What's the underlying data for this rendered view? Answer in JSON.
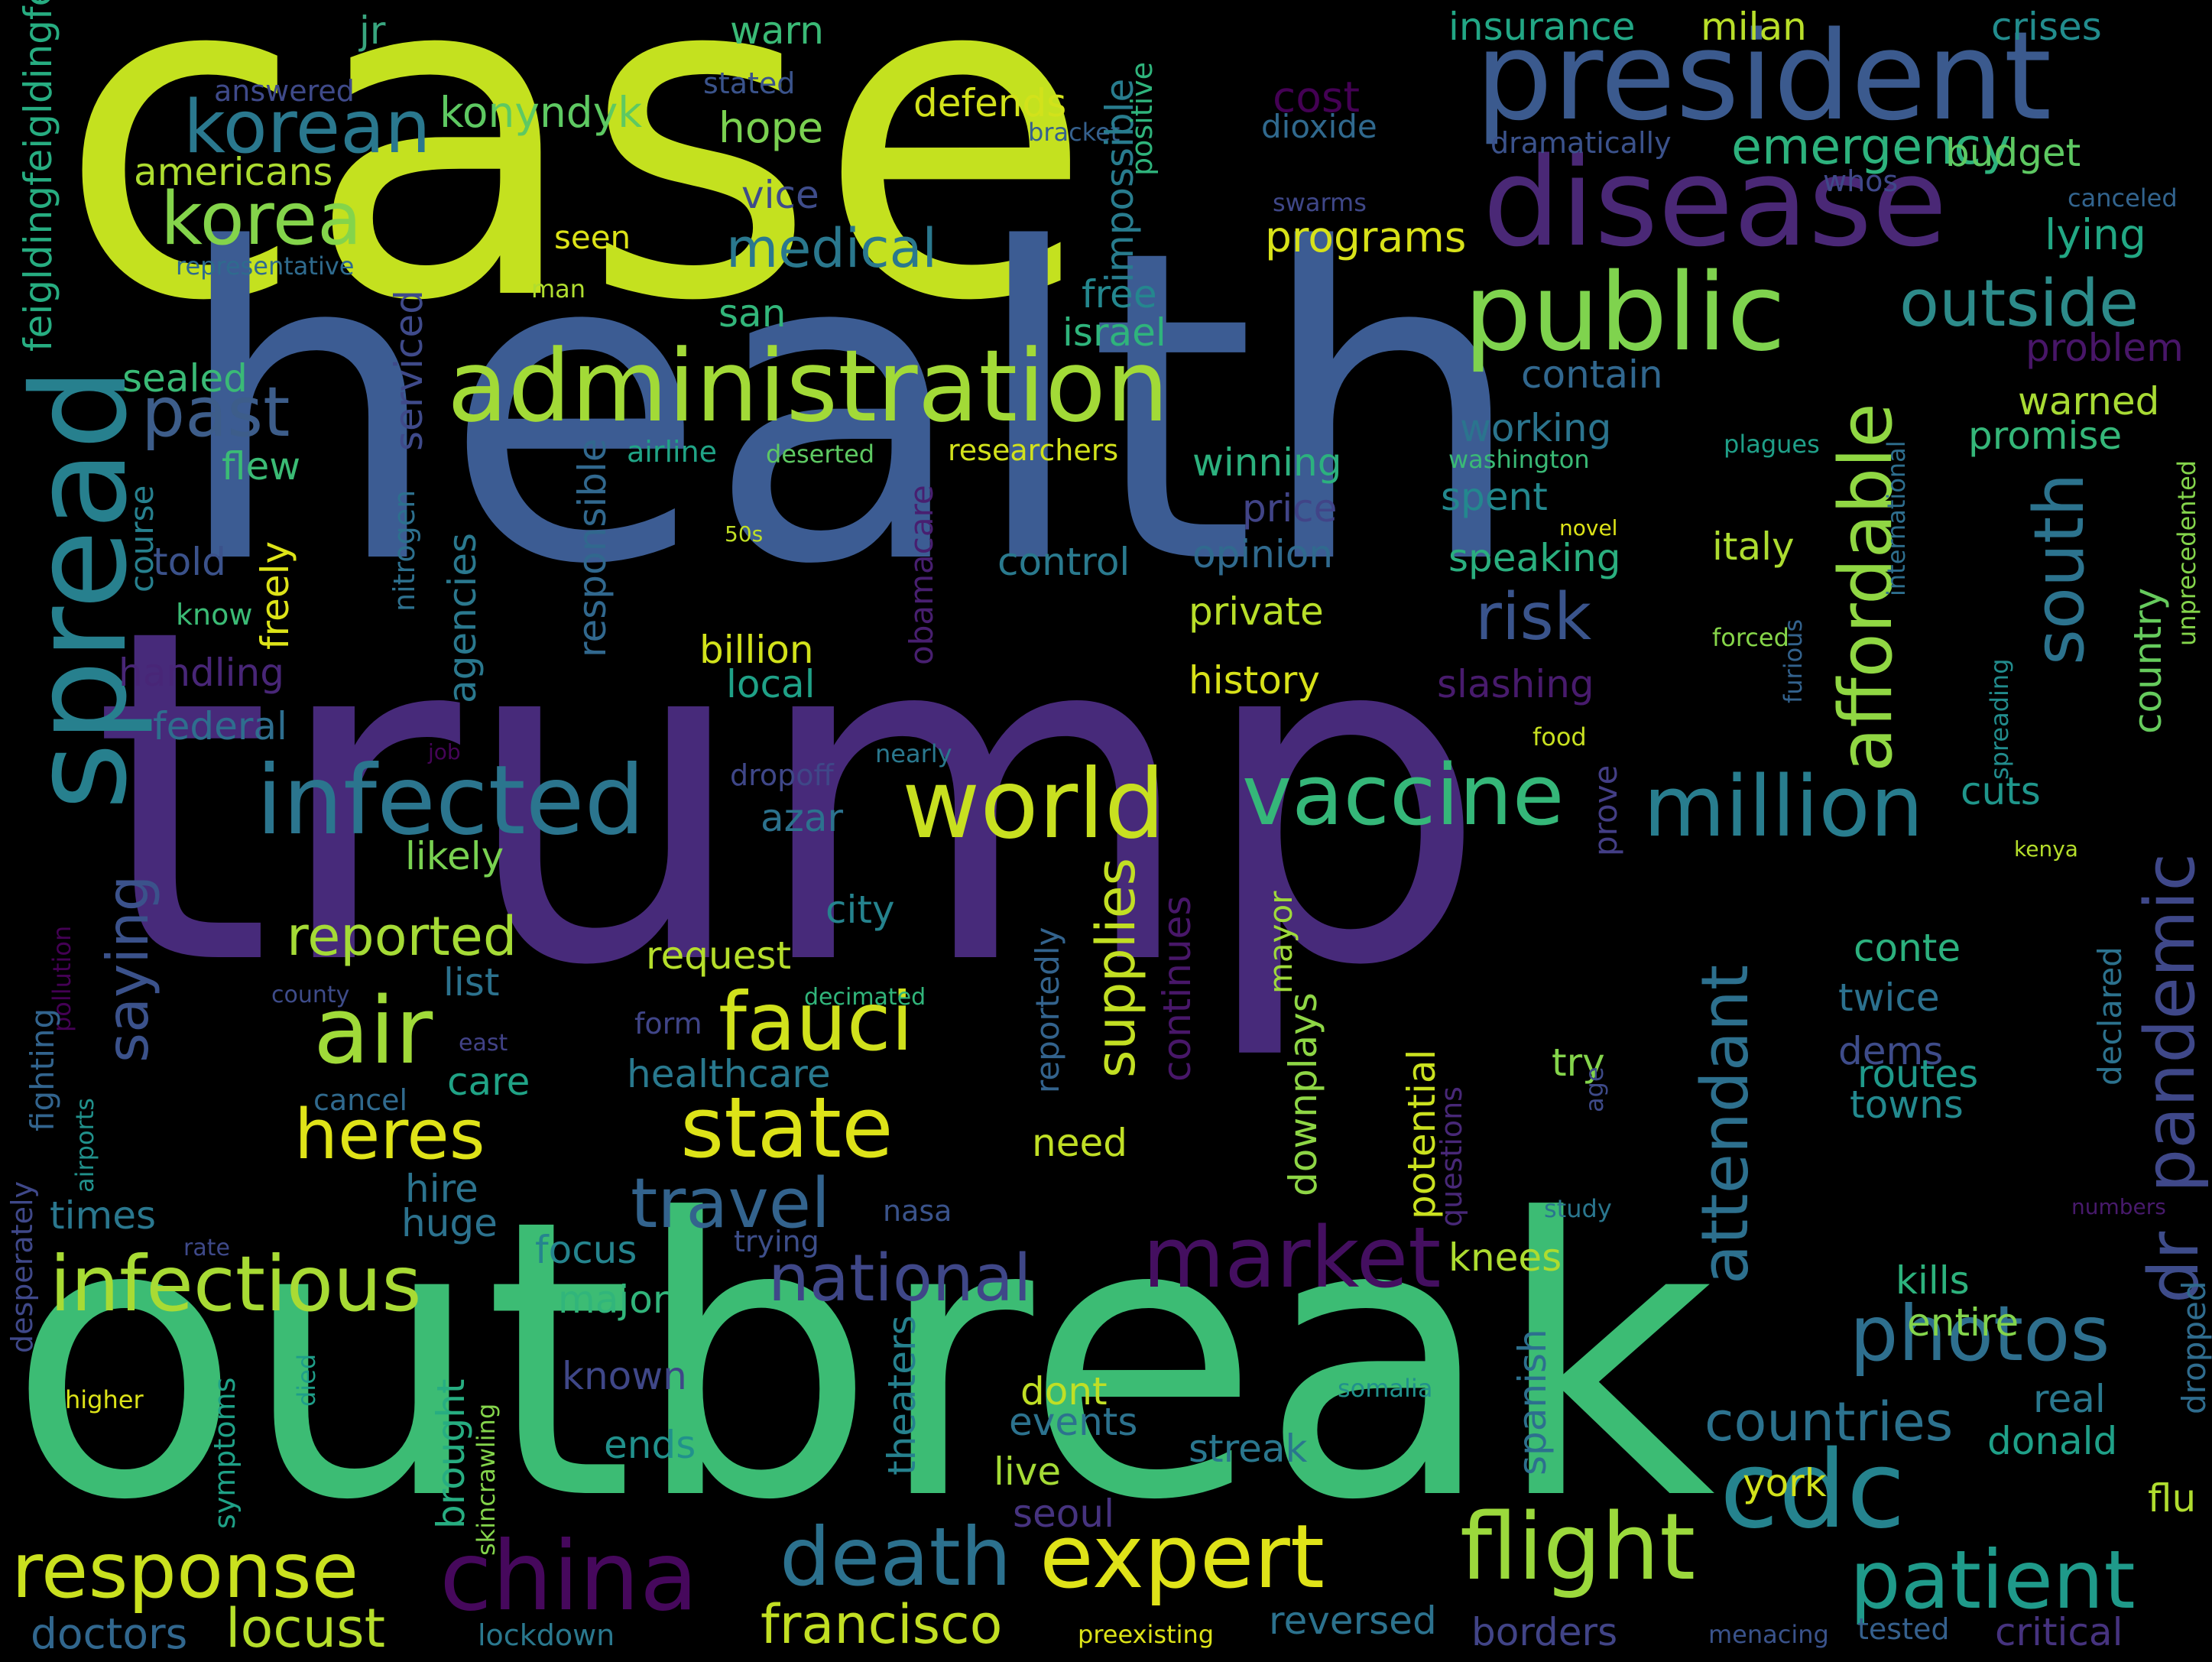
{
  "words": [
    {
      "text": "case",
      "color": "#c4e11f"
    },
    {
      "text": "health",
      "color": "#3c5c93"
    },
    {
      "text": "trump",
      "color": "#472a7a"
    },
    {
      "text": "outbreak",
      "color": "#3cbc74"
    },
    {
      "text": "president",
      "color": "#3b5a8e"
    },
    {
      "text": "disease",
      "color": "#4a2876"
    },
    {
      "text": "public",
      "color": "#7fd34e"
    },
    {
      "text": "administration",
      "color": "#a2da37"
    },
    {
      "text": "korean",
      "color": "#2a788e"
    },
    {
      "text": "korea",
      "color": "#84d44b"
    },
    {
      "text": "spread",
      "color": "#27808e"
    },
    {
      "text": "past",
      "color": "#3d5d8a"
    },
    {
      "text": "infected",
      "color": "#2b758e"
    },
    {
      "text": "world",
      "color": "#c8e020"
    },
    {
      "text": "vaccine",
      "color": "#35b779"
    },
    {
      "text": "million",
      "color": "#287d8e"
    },
    {
      "text": "affordable",
      "color": "#90d743"
    },
    {
      "text": "south",
      "color": "#2c738e"
    },
    {
      "text": "outside",
      "color": "#2d8b8a"
    },
    {
      "text": "risk",
      "color": "#3a548c"
    },
    {
      "text": "air",
      "color": "#a0da39"
    },
    {
      "text": "fauci",
      "color": "#d0e11c"
    },
    {
      "text": "state",
      "color": "#dde318"
    },
    {
      "text": "heres",
      "color": "#dfe318"
    },
    {
      "text": "travel",
      "color": "#33638d"
    },
    {
      "text": "national",
      "color": "#3f4788"
    },
    {
      "text": "market",
      "color": "#440f60"
    },
    {
      "text": "pandemic",
      "color": "#3f4889"
    },
    {
      "text": "dr",
      "color": "#3e4c8a"
    },
    {
      "text": "photos",
      "color": "#2e6f8e"
    },
    {
      "text": "cdc",
      "color": "#25838e"
    },
    {
      "text": "patient",
      "color": "#1f9a8a"
    },
    {
      "text": "flight",
      "color": "#9bd93c"
    },
    {
      "text": "expert",
      "color": "#dfe318"
    },
    {
      "text": "death",
      "color": "#2c718e"
    },
    {
      "text": "china",
      "color": "#46085c"
    },
    {
      "text": "response",
      "color": "#cae11f"
    },
    {
      "text": "infectious",
      "color": "#a8db34"
    },
    {
      "text": "attendant",
      "color": "#2d708e"
    },
    {
      "text": "medical",
      "color": "#2a788e"
    },
    {
      "text": "emergency",
      "color": "#2db27d"
    },
    {
      "text": "reported",
      "color": "#a5db36"
    },
    {
      "text": "saying",
      "color": "#3b528b"
    },
    {
      "text": "supplies",
      "color": "#c2df23"
    },
    {
      "text": "countries",
      "color": "#2c728e"
    },
    {
      "text": "locust",
      "color": "#b5de2b"
    },
    {
      "text": "francisco",
      "color": "#c2df23"
    },
    {
      "text": "doctors",
      "color": "#31678e"
    },
    {
      "text": "insurance",
      "color": "#22a785"
    },
    {
      "text": "milan",
      "color": "#b8de29"
    },
    {
      "text": "crises",
      "color": "#228c8d"
    },
    {
      "text": "warn",
      "color": "#3aba76"
    },
    {
      "text": "jr",
      "color": "#39a57f"
    },
    {
      "text": "answered",
      "color": "#3f4a8a"
    },
    {
      "text": "stated",
      "color": "#3a538b"
    },
    {
      "text": "defends",
      "color": "#d2e21b"
    },
    {
      "text": "cost",
      "color": "#440154"
    },
    {
      "text": "dioxide",
      "color": "#30698e"
    },
    {
      "text": "konyndyk",
      "color": "#5ec962"
    },
    {
      "text": "hope",
      "color": "#7ad151"
    },
    {
      "text": "bracket",
      "color": "#35608d"
    },
    {
      "text": "impossible",
      "color": "#287c8e"
    },
    {
      "text": "positive",
      "color": "#2fb47c"
    },
    {
      "text": "americans",
      "color": "#addc30"
    },
    {
      "text": "vice",
      "color": "#3e4c8a"
    },
    {
      "text": "dramatically",
      "color": "#3b528b"
    },
    {
      "text": "whos",
      "color": "#3f4889"
    },
    {
      "text": "budget",
      "color": "#5ec962"
    },
    {
      "text": "canceled",
      "color": "#32648e"
    },
    {
      "text": "swarms",
      "color": "#3f4788"
    },
    {
      "text": "lying",
      "color": "#22a884"
    },
    {
      "text": "feigldingfeigldingfeigl",
      "color": "#27ad81"
    },
    {
      "text": "representative",
      "color": "#2f6b8e"
    },
    {
      "text": "seen",
      "color": "#dde318"
    },
    {
      "text": "man",
      "color": "#b0dd2f"
    },
    {
      "text": "programs",
      "color": "#d8e219"
    },
    {
      "text": "san",
      "color": "#32b67a"
    },
    {
      "text": "free",
      "color": "#24878e"
    },
    {
      "text": "israel",
      "color": "#2fb47c"
    },
    {
      "text": "serviced",
      "color": "#3f4a8a"
    },
    {
      "text": "contain",
      "color": "#31678e"
    },
    {
      "text": "problem",
      "color": "#481668"
    },
    {
      "text": "sealed",
      "color": "#3aba76"
    },
    {
      "text": "flew",
      "color": "#3bbb75"
    },
    {
      "text": "working",
      "color": "#2b748e"
    },
    {
      "text": "warned",
      "color": "#a8db34"
    },
    {
      "text": "promise",
      "color": "#35b779"
    },
    {
      "text": "airline",
      "color": "#20a486"
    },
    {
      "text": "deserted",
      "color": "#5ec962"
    },
    {
      "text": "obamacare",
      "color": "#481f70"
    },
    {
      "text": "researchers",
      "color": "#d2e21b"
    },
    {
      "text": "winning",
      "color": "#2cb17e"
    },
    {
      "text": "washington",
      "color": "#3aba76"
    },
    {
      "text": "plagues",
      "color": "#1f9f88"
    },
    {
      "text": "international",
      "color": "#2e6e8e"
    },
    {
      "text": "unprecedented",
      "color": "#84d44b"
    },
    {
      "text": "course",
      "color": "#27808e"
    },
    {
      "text": "told",
      "color": "#3b528b"
    },
    {
      "text": "freely",
      "color": "#dde318"
    },
    {
      "text": "nitrogen",
      "color": "#2d708e"
    },
    {
      "text": "agencies",
      "color": "#2a788e"
    },
    {
      "text": "responsible",
      "color": "#31688e"
    },
    {
      "text": "price",
      "color": "#414487"
    },
    {
      "text": "spent",
      "color": "#23888e"
    },
    {
      "text": "novel",
      "color": "#dde318"
    },
    {
      "text": "50s",
      "color": "#c0df25"
    },
    {
      "text": "control",
      "color": "#2a7a8e"
    },
    {
      "text": "opinion",
      "color": "#306a8e"
    },
    {
      "text": "speaking",
      "color": "#2aaf7f"
    },
    {
      "text": "italy",
      "color": "#addc30"
    },
    {
      "text": "country",
      "color": "#66cb5d"
    },
    {
      "text": "know",
      "color": "#3bbb75"
    },
    {
      "text": "private",
      "color": "#b8de29"
    },
    {
      "text": "billion",
      "color": "#d2e21b"
    },
    {
      "text": "local",
      "color": "#1fa187"
    },
    {
      "text": "history",
      "color": "#d8e219"
    },
    {
      "text": "slashing",
      "color": "#481b6d"
    },
    {
      "text": "forced",
      "color": "#86d549"
    },
    {
      "text": "furious",
      "color": "#33628d"
    },
    {
      "text": "spreading",
      "color": "#228c8d"
    },
    {
      "text": "handling",
      "color": "#482677"
    },
    {
      "text": "federal",
      "color": "#2e6e8e"
    },
    {
      "text": "job",
      "color": "#450457"
    },
    {
      "text": "nearly",
      "color": "#2a788e"
    },
    {
      "text": "food",
      "color": "#c8e020"
    },
    {
      "text": "dropoff",
      "color": "#3f4788"
    },
    {
      "text": "azar",
      "color": "#2c728e"
    },
    {
      "text": "prove",
      "color": "#433e85"
    },
    {
      "text": "cuts",
      "color": "#1f968b"
    },
    {
      "text": "kenya",
      "color": "#b5de2b"
    },
    {
      "text": "likely",
      "color": "#79d151"
    },
    {
      "text": "pollution",
      "color": "#440154"
    },
    {
      "text": "fighting",
      "color": "#32648e"
    },
    {
      "text": "desperately",
      "color": "#3f4889"
    },
    {
      "text": "list",
      "color": "#2c728e"
    },
    {
      "text": "city",
      "color": "#25838e"
    },
    {
      "text": "request",
      "color": "#b5de2b"
    },
    {
      "text": "mayor",
      "color": "#9fda3a"
    },
    {
      "text": "reportedly",
      "color": "#33638d"
    },
    {
      "text": "continues",
      "color": "#481769"
    },
    {
      "text": "conte",
      "color": "#2cb17e"
    },
    {
      "text": "twice",
      "color": "#2c718e"
    },
    {
      "text": "declared",
      "color": "#2c728e"
    },
    {
      "text": "county",
      "color": "#3e4c8a"
    },
    {
      "text": "decimated",
      "color": "#31b57b"
    },
    {
      "text": "form",
      "color": "#404588"
    },
    {
      "text": "east",
      "color": "#414287"
    },
    {
      "text": "cancel",
      "color": "#306a8e"
    },
    {
      "text": "care",
      "color": "#20a386"
    },
    {
      "text": "healthcare",
      "color": "#29798e"
    },
    {
      "text": "potential",
      "color": "#cae11f"
    },
    {
      "text": "downplays",
      "color": "#8ed645"
    },
    {
      "text": "questions",
      "color": "#482878"
    },
    {
      "text": "try",
      "color": "#84d44b"
    },
    {
      "text": "dems",
      "color": "#3e4c8a"
    },
    {
      "text": "routes",
      "color": "#1f9a8a"
    },
    {
      "text": "towns",
      "color": "#23898e"
    },
    {
      "text": "airports",
      "color": "#21918c"
    },
    {
      "text": "hire",
      "color": "#2c738e"
    },
    {
      "text": "times",
      "color": "#2a778e"
    },
    {
      "text": "huge",
      "color": "#2c728e"
    },
    {
      "text": "nasa",
      "color": "#3a538b"
    },
    {
      "text": "need",
      "color": "#c0df25"
    },
    {
      "text": "age",
      "color": "#3e4a89"
    },
    {
      "text": "study",
      "color": "#2a768e"
    },
    {
      "text": "numbers",
      "color": "#481a6c"
    },
    {
      "text": "rate",
      "color": "#3e4989"
    },
    {
      "text": "trying",
      "color": "#3d4e8a"
    },
    {
      "text": "focus",
      "color": "#25848e"
    },
    {
      "text": "knees",
      "color": "#addc30"
    },
    {
      "text": "major",
      "color": "#31b57b"
    },
    {
      "text": "kills",
      "color": "#2db27d"
    },
    {
      "text": "entire",
      "color": "#84d44b"
    },
    {
      "text": "dropped",
      "color": "#2f6c8e"
    },
    {
      "text": "spanish",
      "color": "#2d708e"
    },
    {
      "text": "theaters",
      "color": "#26818e"
    },
    {
      "text": "known",
      "color": "#3f4788"
    },
    {
      "text": "brought",
      "color": "#27ad81"
    },
    {
      "text": "skincrawling",
      "color": "#84d44b"
    },
    {
      "text": "died",
      "color": "#1f9e89"
    },
    {
      "text": "higher",
      "color": "#dde318"
    },
    {
      "text": "symptoms",
      "color": "#1fa187"
    },
    {
      "text": "somalia",
      "color": "#21918c"
    },
    {
      "text": "dont",
      "color": "#c0df25"
    },
    {
      "text": "events",
      "color": "#2c728e"
    },
    {
      "text": "ends",
      "color": "#21918c"
    },
    {
      "text": "live",
      "color": "#a5db36"
    },
    {
      "text": "streak",
      "color": "#2a778e"
    },
    {
      "text": "real",
      "color": "#2a788e"
    },
    {
      "text": "donald",
      "color": "#1fa088"
    },
    {
      "text": "seoul",
      "color": "#46337f"
    },
    {
      "text": "york",
      "color": "#d2e21b"
    },
    {
      "text": "flu",
      "color": "#b0dd2f"
    },
    {
      "text": "reversed",
      "color": "#2c728e"
    },
    {
      "text": "borders",
      "color": "#414487"
    },
    {
      "text": "lockdown",
      "color": "#2a788e"
    },
    {
      "text": "preexisting",
      "color": "#dde318"
    },
    {
      "text": "menacing",
      "color": "#3a538b"
    },
    {
      "text": "tested",
      "color": "#35608d"
    },
    {
      "text": "critical",
      "color": "#46337f"
    }
  ]
}
